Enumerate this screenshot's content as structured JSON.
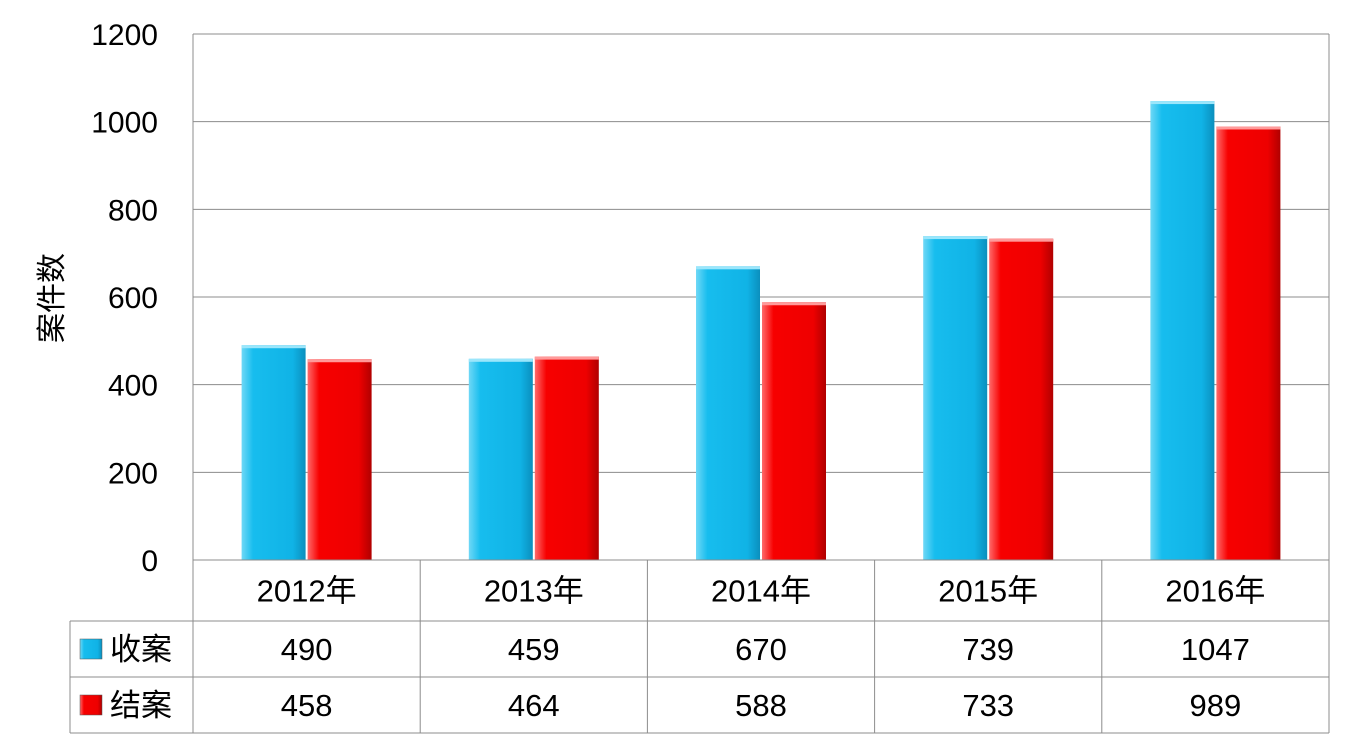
{
  "chart_data": {
    "type": "bar",
    "ylabel": "案件数",
    "ylim": [
      0,
      1200
    ],
    "yticks": [
      0,
      200,
      400,
      600,
      800,
      1000,
      1200
    ],
    "grid": true,
    "categories": [
      "2012年",
      "2013年",
      "2014年",
      "2015年",
      "2016年"
    ],
    "series": [
      {
        "name": "收案",
        "color": "#12b8ec",
        "values": [
          490,
          459,
          670,
          739,
          1047
        ]
      },
      {
        "name": "结案",
        "color": "#f30000",
        "values": [
          458,
          464,
          588,
          733,
          989
        ]
      }
    ],
    "data_table": true
  }
}
